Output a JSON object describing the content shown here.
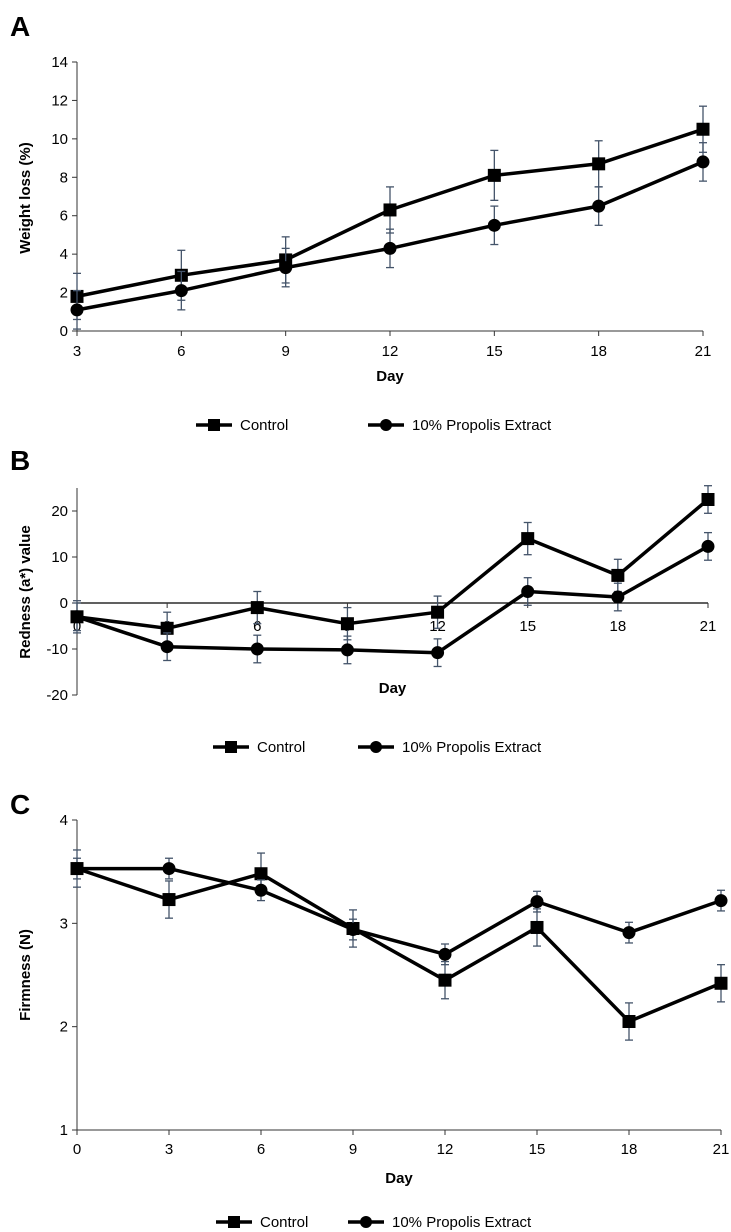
{
  "chart_data": [
    {
      "type": "line",
      "panel": "A",
      "x": [
        3,
        6,
        9,
        12,
        15,
        18,
        21
      ],
      "xlabel": "Day",
      "ylabel": "Weight loss (%)",
      "ylim": [
        0,
        14
      ],
      "yticks": [
        0,
        2,
        4,
        6,
        8,
        10,
        12,
        14
      ],
      "xtick_labels": [
        "3",
        "6",
        "9",
        "12",
        "15",
        "18",
        "21"
      ],
      "series": [
        {
          "name": "Control",
          "marker": "square",
          "values": [
            1.8,
            2.9,
            3.7,
            6.3,
            8.1,
            8.7,
            10.5
          ],
          "errors": [
            1.2,
            1.3,
            1.2,
            1.2,
            1.3,
            1.2,
            1.2
          ]
        },
        {
          "name": "10% Propolis Extract",
          "marker": "circle",
          "values": [
            1.1,
            2.1,
            3.3,
            4.3,
            5.5,
            6.5,
            8.8
          ],
          "errors": [
            1.0,
            1.0,
            1.0,
            1.0,
            1.0,
            1.0,
            1.0
          ]
        }
      ],
      "legend_position": "bottom"
    },
    {
      "type": "line",
      "panel": "B",
      "x": [
        0,
        3,
        6,
        9,
        12,
        15,
        18,
        21
      ],
      "xlabel": "Day",
      "ylabel": "Redness (a*) value",
      "ylim": [
        -20,
        25
      ],
      "yticks": [
        -20,
        -10,
        0,
        10,
        20
      ],
      "xtick_labels": [
        "0",
        "3",
        "6",
        "9",
        "12",
        "15",
        "18",
        "21"
      ],
      "series": [
        {
          "name": "Control",
          "marker": "square",
          "values": [
            -3,
            -5.5,
            -1,
            -4.5,
            -2,
            14,
            6,
            22.5
          ],
          "errors": [
            3.5,
            3.5,
            3.5,
            3.5,
            3.5,
            3.5,
            3.5,
            3.0
          ]
        },
        {
          "name": "10% Propolis Extract",
          "marker": "circle",
          "values": [
            -3,
            -9.5,
            -10,
            -10.2,
            -10.8,
            2.5,
            1.3,
            12.3
          ],
          "errors": [
            3.0,
            3.0,
            3.0,
            3.0,
            3.0,
            3.0,
            3.0,
            3.0
          ]
        }
      ],
      "legend_position": "bottom"
    },
    {
      "type": "line",
      "panel": "C",
      "x": [
        0,
        3,
        6,
        9,
        12,
        15,
        18,
        21
      ],
      "xlabel": "Day",
      "ylabel": "Firmness (N)",
      "ylim": [
        1,
        4
      ],
      "yticks": [
        1,
        2,
        3,
        4
      ],
      "xtick_labels": [
        "0",
        "3",
        "6",
        "9",
        "12",
        "15",
        "18",
        "21"
      ],
      "series": [
        {
          "name": "Control",
          "marker": "square",
          "values": [
            3.53,
            3.23,
            3.48,
            2.95,
            2.45,
            2.96,
            2.05,
            2.42
          ],
          "errors": [
            0.18,
            0.18,
            0.2,
            0.18,
            0.18,
            0.18,
            0.18,
            0.18
          ]
        },
        {
          "name": "10% Propolis Extract",
          "marker": "circle",
          "values": [
            3.53,
            3.53,
            3.32,
            2.94,
            2.7,
            3.21,
            2.91,
            3.22
          ],
          "errors": [
            0.1,
            0.1,
            0.1,
            0.1,
            0.1,
            0.1,
            0.1,
            0.1
          ]
        }
      ],
      "legend_position": "bottom"
    }
  ],
  "colors": {
    "series": "#000000",
    "axis": "#333333",
    "error_bars": "#44546a"
  }
}
